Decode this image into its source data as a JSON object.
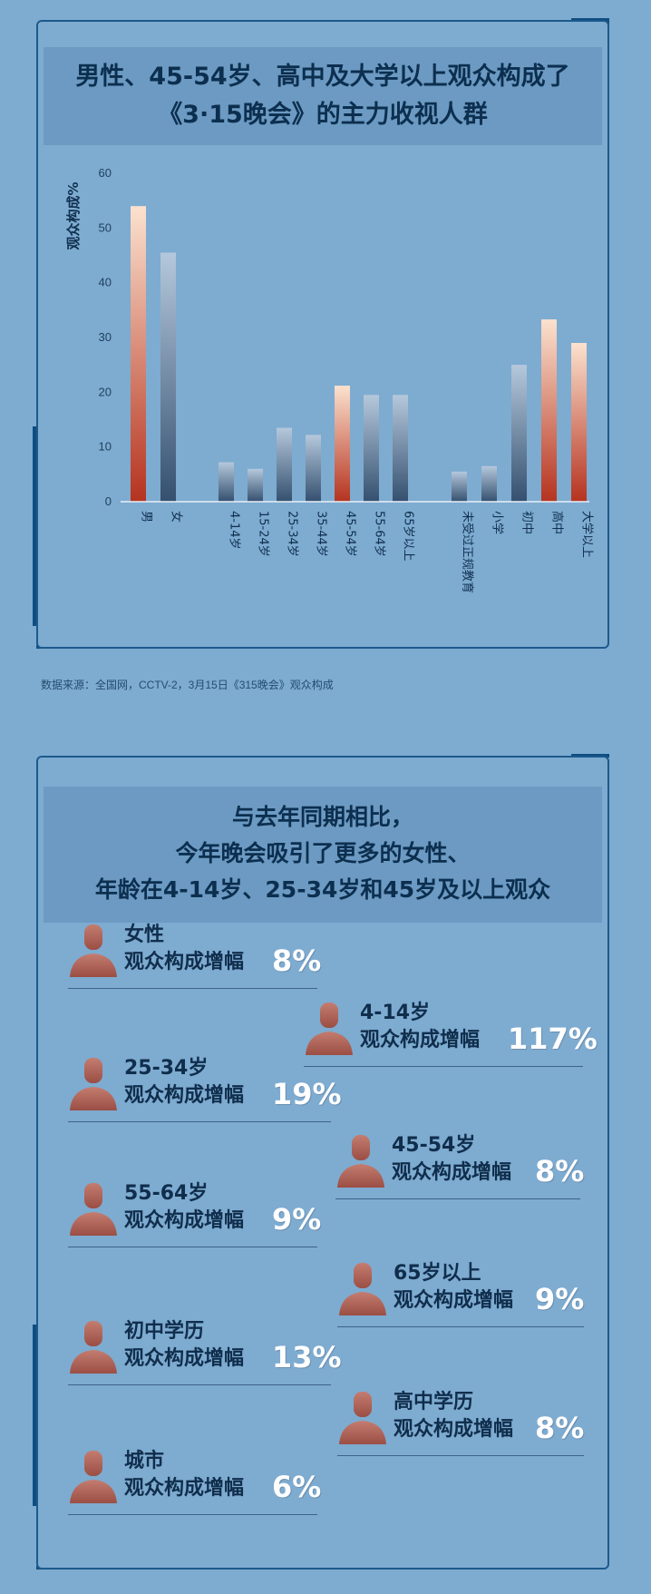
{
  "colors": {
    "background": "#7eabd0",
    "frame": "#1d5a8c",
    "title_band": "#6c9ac2",
    "highlight_bar_top": "#fbe2cf",
    "highlight_bar_bottom": "#b5331f",
    "normal_bar_top": "#b5c8dc",
    "normal_bar_bottom": "#34506f",
    "person_icon": "#b86a5e"
  },
  "panel1": {
    "title_line1": "男性、45-54岁、高中及大学以上观众构成了",
    "title_line2": "《3·15晚会》的主力收视人群"
  },
  "source": "数据来源：全国网，CCTV-2，3月15日《315晚会》观众构成",
  "chart_data": {
    "type": "bar",
    "ylabel": "观众构成%",
    "ylim": [
      0,
      60
    ],
    "yticks": [
      0,
      10,
      20,
      30,
      40,
      50,
      60
    ],
    "groups": [
      {
        "categories": [
          "男",
          "女"
        ],
        "values": [
          54,
          45.5
        ],
        "highlight": [
          true,
          false
        ]
      },
      {
        "categories": [
          "4-14岁",
          "15-24岁",
          "25-34岁",
          "35-44岁",
          "45-54岁",
          "55-64岁",
          "65岁以上"
        ],
        "values": [
          7.2,
          6,
          13.5,
          12.2,
          21.2,
          19.5,
          19.5
        ],
        "highlight": [
          false,
          false,
          false,
          false,
          true,
          false,
          false
        ]
      },
      {
        "categories": [
          "未受过正规教育",
          "小学",
          "初中",
          "高中",
          "大学以上"
        ],
        "values": [
          5.5,
          6.5,
          25,
          33.3,
          29
        ],
        "highlight": [
          false,
          false,
          false,
          true,
          true
        ]
      }
    ]
  },
  "panel2": {
    "title_line1": "与去年同期相比，",
    "title_line2": "今年晚会吸引了更多的女性、",
    "title_line3": "年龄在4-14岁、25-34岁和45岁及以上观众",
    "metric_label": "观众构成增幅",
    "items": [
      {
        "label": "女性",
        "value": "8%"
      },
      {
        "label": "4-14岁",
        "value": "117%"
      },
      {
        "label": "25-34岁",
        "value": "19%"
      },
      {
        "label": "45-54岁",
        "value": "8%"
      },
      {
        "label": "55-64岁",
        "value": "9%"
      },
      {
        "label": "65岁以上",
        "value": "9%"
      },
      {
        "label": "初中学历",
        "value": "13%"
      },
      {
        "label": "高中学历",
        "value": "8%"
      },
      {
        "label": "城市",
        "value": "6%"
      }
    ]
  }
}
